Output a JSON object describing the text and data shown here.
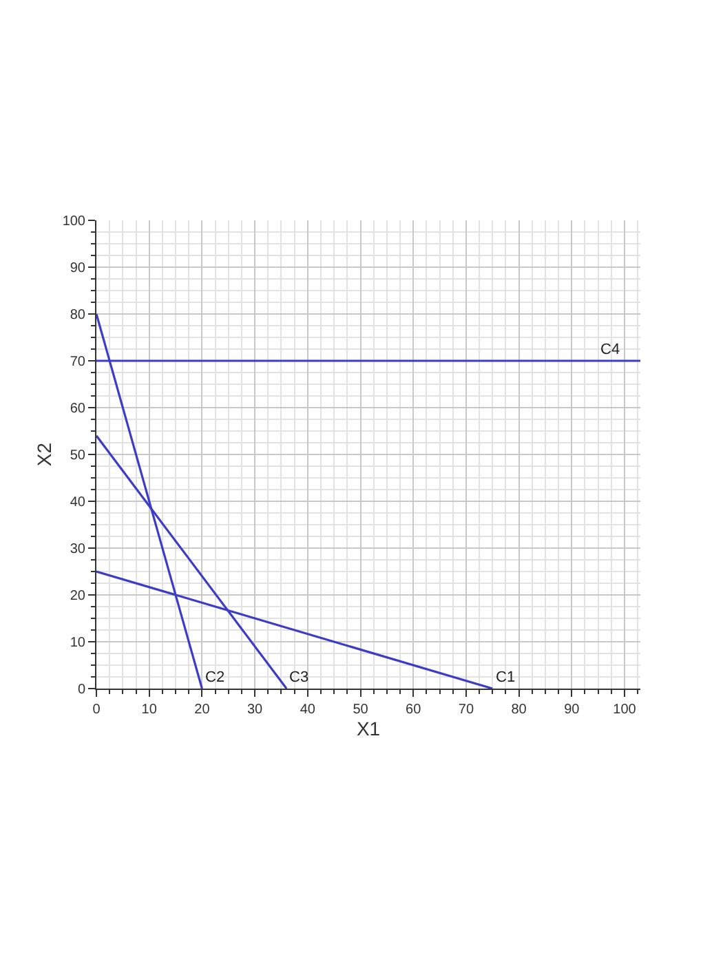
{
  "chart_data": {
    "type": "line",
    "xlabel": "X1",
    "ylabel": "X2",
    "xlim": [
      0,
      103
    ],
    "ylim": [
      0,
      100
    ],
    "xticks": [
      0,
      10,
      20,
      30,
      40,
      50,
      60,
      70,
      80,
      90,
      100
    ],
    "yticks": [
      0,
      10,
      20,
      30,
      40,
      50,
      60,
      70,
      80,
      90,
      100
    ],
    "grid": true,
    "marker": "none",
    "line_style": "solid",
    "series": [
      {
        "color": "#3c3cc8",
        "x": [
          0,
          75
        ],
        "values": [
          25,
          0
        ]
      },
      {
        "color": "#3c3cc8",
        "x": [
          0,
          20
        ],
        "values": [
          80,
          0
        ]
      },
      {
        "color": "#3c3cc8",
        "x": [
          0,
          36
        ],
        "values": [
          54,
          0
        ]
      },
      {
        "color": "#3c3cc8",
        "x": [
          0,
          103
        ],
        "values": [
          70,
          70
        ]
      }
    ],
    "annotations": [
      {
        "text": "C1",
        "x": 75,
        "y": 0
      },
      {
        "text": "C2",
        "x": 20,
        "y": 0
      },
      {
        "text": "C3",
        "x": 36,
        "y": 0
      },
      {
        "text": "C4",
        "x": 95,
        "y": 70
      }
    ]
  }
}
